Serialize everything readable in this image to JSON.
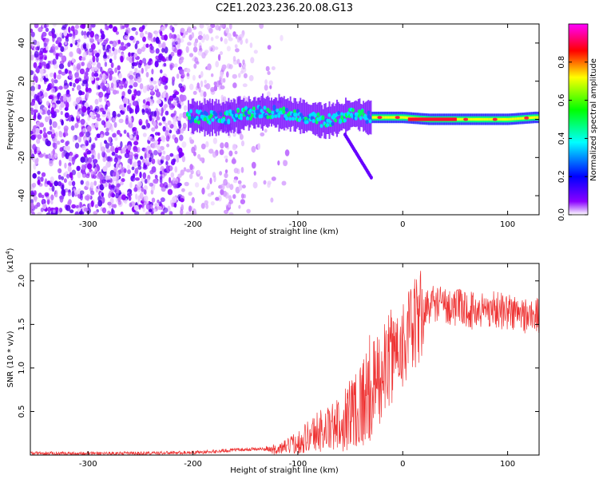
{
  "figure": {
    "title": "C2E1.2023.236.20.08.G13"
  },
  "chart_data": [
    {
      "type": "heatmap",
      "title": "C2E1.2023.236.20.08.G13",
      "xlabel": "Height of straight line (km)",
      "ylabel": "Frequency (Hz)",
      "xlim": [
        -355,
        130
      ],
      "ylim": [
        -50,
        50
      ],
      "x_ticks": [
        -300,
        -200,
        -100,
        0,
        100
      ],
      "y_ticks": [
        -40,
        -20,
        0,
        20,
        40
      ],
      "colorbar": {
        "label": "Normalized spectral amplitude",
        "range": [
          0,
          1
        ],
        "ticks": [
          "0.0",
          "0.2",
          "0.4",
          "0.6",
          "0.8"
        ],
        "colormap": [
          "#ffffff",
          "#8a00ff",
          "#0000ff",
          "#00ffff",
          "#00ff00",
          "#ffff00",
          "#ff0000",
          "#ff00ff"
        ]
      },
      "band_center_hz": [
        [
          -205,
          2
        ],
        [
          -190,
          1
        ],
        [
          -170,
          1
        ],
        [
          -150,
          3
        ],
        [
          -130,
          4
        ],
        [
          -110,
          3
        ],
        [
          -90,
          1
        ],
        [
          -75,
          -1
        ],
        [
          -60,
          1
        ],
        [
          -45,
          3
        ],
        [
          -35,
          1
        ],
        [
          -25,
          1
        ],
        [
          0,
          1
        ],
        [
          25,
          0
        ],
        [
          50,
          0
        ],
        [
          75,
          0
        ],
        [
          100,
          0
        ],
        [
          125,
          1
        ]
      ],
      "band_halfwidth_hz": 4,
      "peak_region_km": [
        5,
        50
      ]
    },
    {
      "type": "line",
      "xlabel": "Height of straight line (km)",
      "ylabel": "SNR (10 * v/v)",
      "y_scale_label": "(x10",
      "y_scale_exponent": "4",
      "xlim": [
        -355,
        130
      ],
      "ylim": [
        0,
        2.2
      ],
      "x_ticks": [
        -300,
        -200,
        -100,
        0,
        100
      ],
      "y_ticks": [
        "0.5",
        "1.0",
        "1.5",
        "2.0"
      ],
      "series": [
        {
          "color": "#ee3333",
          "x": [
            -355,
            -300,
            -250,
            -200,
            -180,
            -160,
            -140,
            -120,
            -110,
            -100,
            -90,
            -80,
            -70,
            -60,
            -50,
            -40,
            -30,
            -20,
            -15,
            -10,
            -5,
            0,
            5,
            10,
            15,
            20,
            25,
            30,
            40,
            50,
            60,
            70,
            80,
            90,
            100,
            110,
            120,
            130
          ],
          "values": [
            0.02,
            0.02,
            0.02,
            0.03,
            0.04,
            0.06,
            0.07,
            0.06,
            0.1,
            0.15,
            0.22,
            0.28,
            0.3,
            0.35,
            0.5,
            0.6,
            0.75,
            0.9,
            1.05,
            1.15,
            1.25,
            1.3,
            1.35,
            1.45,
            1.55,
            1.65,
            1.72,
            1.75,
            1.72,
            1.7,
            1.68,
            1.65,
            1.68,
            1.67,
            1.65,
            1.62,
            1.6,
            1.6
          ]
        }
      ]
    }
  ]
}
